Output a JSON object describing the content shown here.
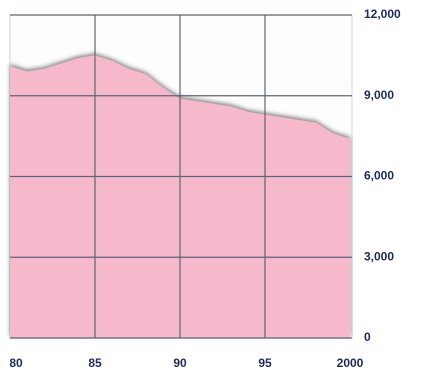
{
  "chart_data": {
    "type": "area",
    "x": [
      1980,
      1981,
      1982,
      1983,
      1984,
      1985,
      1986,
      1987,
      1988,
      1989,
      1990,
      1991,
      1992,
      1993,
      1994,
      1995,
      1996,
      1997,
      1998,
      1999,
      2000
    ],
    "values": [
      10100,
      9900,
      10000,
      10200,
      10400,
      10500,
      10300,
      10000,
      9800,
      9300,
      8900,
      8800,
      8700,
      8600,
      8400,
      8300,
      8200,
      8100,
      8000,
      7600,
      7400
    ],
    "color": "#f6b8cb",
    "xlim": [
      1980,
      2000
    ],
    "xticks": [
      {
        "value": 1980,
        "label": "80"
      },
      {
        "value": 1985,
        "label": "85"
      },
      {
        "value": 1990,
        "label": "90"
      },
      {
        "value": 1995,
        "label": "95"
      },
      {
        "value": 2000,
        "label": "2000"
      }
    ],
    "ylim": [
      0,
      12000
    ],
    "yticks": [
      0,
      {
        "value": 3000,
        "label": "3,000"
      },
      {
        "value": 6000,
        "label": "6,000"
      },
      {
        "value": 9000,
        "label": "9,000"
      },
      {
        "value": 12000,
        "label": "12,000"
      }
    ],
    "grid": true
  }
}
